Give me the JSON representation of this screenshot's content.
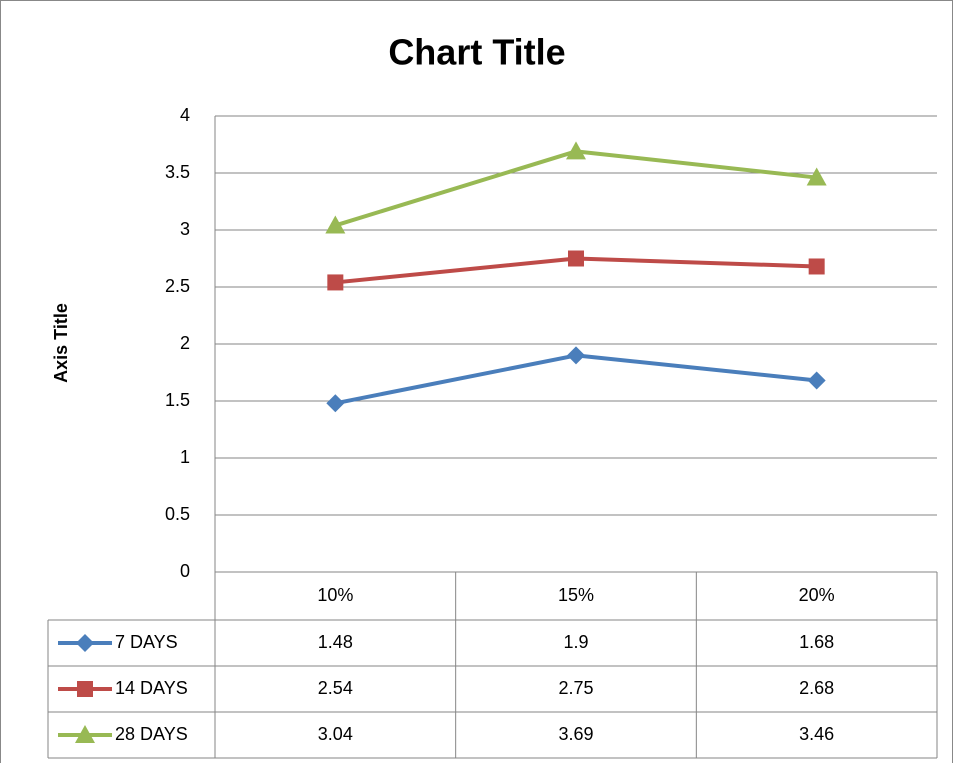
{
  "chart_data": {
    "type": "line",
    "title": "Chart Title",
    "y_label": "Axis Title",
    "categories": [
      "10%",
      "15%",
      "20%"
    ],
    "series": [
      {
        "name": "7 DAYS",
        "color": "#4a7ebb",
        "marker": "diamond",
        "values": [
          1.48,
          1.9,
          1.68
        ]
      },
      {
        "name": "14 DAYS",
        "color": "#be4b48",
        "marker": "square",
        "values": [
          2.54,
          2.75,
          2.68
        ]
      },
      {
        "name": "28 DAYS",
        "color": "#98b954",
        "marker": "triangle",
        "values": [
          3.04,
          3.69,
          3.46
        ]
      }
    ],
    "ylim": [
      0,
      4
    ],
    "yticks": [
      0,
      0.5,
      1,
      1.5,
      2,
      2.5,
      3,
      3.5,
      4
    ],
    "grid": true,
    "data_table": true
  }
}
